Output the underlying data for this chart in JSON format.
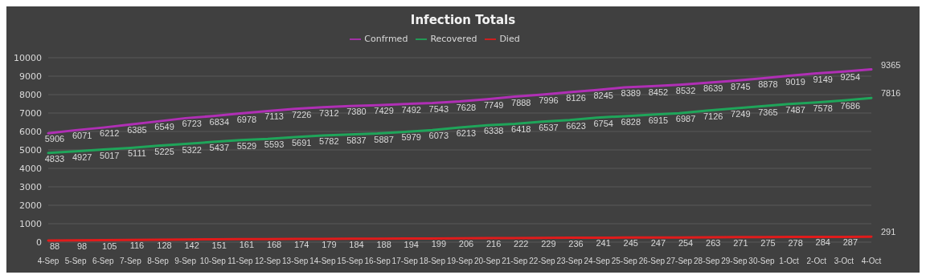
{
  "chart_data": {
    "type": "line",
    "title": "Infection Totals",
    "categories": [
      "4-Sep",
      "5-Sep",
      "6-Sep",
      "7-Sep",
      "8-Sep",
      "9-Sep",
      "10-Sep",
      "11-Sep",
      "12-Sep",
      "13-Sep",
      "14-Sep",
      "15-Sep",
      "16-Sep",
      "17-Sep",
      "18-Sep",
      "19-Sep",
      "20-Sep",
      "21-Sep",
      "22-Sep",
      "23-Sep",
      "24-Sep",
      "25-Sep",
      "26-Sep",
      "27-Sep",
      "28-Sep",
      "29-Sep",
      "30-Sep",
      "1-Oct",
      "2-Oct",
      "3-Oct",
      "4-Oct"
    ],
    "series": [
      {
        "name": "Confrmed",
        "color": "#b02fb5",
        "values": [
          5906,
          6071,
          6212,
          6385,
          6549,
          6723,
          6834,
          6978,
          7113,
          7226,
          7312,
          7380,
          7429,
          7492,
          7543,
          7628,
          7749,
          7888,
          7996,
          8126,
          8245,
          8389,
          8452,
          8532,
          8639,
          8745,
          8878,
          9019,
          9149,
          9254,
          9365
        ]
      },
      {
        "name": "Recovered",
        "color": "#1fa55a",
        "values": [
          4833,
          4927,
          5017,
          5111,
          5225,
          5322,
          5437,
          5529,
          5593,
          5691,
          5782,
          5837,
          5887,
          5979,
          6073,
          6213,
          6338,
          6418,
          6537,
          6623,
          6754,
          6828,
          6915,
          6987,
          7126,
          7249,
          7365,
          7487,
          7578,
          7686,
          7816
        ]
      },
      {
        "name": "Died",
        "color": "#e01b1b",
        "values": [
          88,
          98,
          105,
          116,
          128,
          142,
          151,
          161,
          168,
          174,
          179,
          184,
          188,
          194,
          199,
          206,
          216,
          222,
          229,
          236,
          241,
          245,
          247,
          254,
          263,
          271,
          275,
          278,
          284,
          287,
          291
        ]
      }
    ],
    "ylim": [
      0,
      10000
    ],
    "yticks": [
      0,
      1000,
      2000,
      3000,
      4000,
      5000,
      6000,
      7000,
      8000,
      9000,
      10000
    ],
    "grid": "y",
    "legend": "top",
    "marker": "none",
    "line_style": "solid",
    "data_labels": true
  }
}
